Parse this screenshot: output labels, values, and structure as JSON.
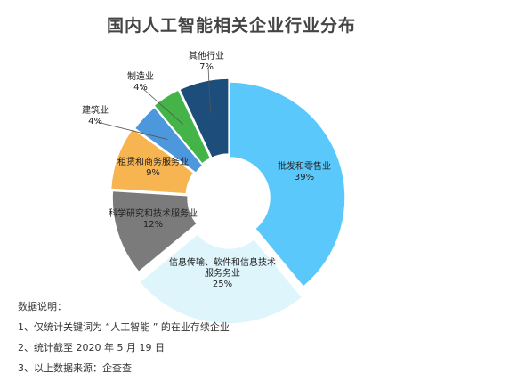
{
  "chart_data": {
    "type": "pie",
    "variant": "donut",
    "title": "国内人工智能相关企业行业分布",
    "slices": [
      {
        "name": "批发和零售业",
        "value": 39,
        "value_label": "39%",
        "color": "#5ac8fa"
      },
      {
        "name": "信息传输、软件和信息技术服务业",
        "name_lines": [
          "信息传输、软件和信息技术",
          "服务务业"
        ],
        "value": 25,
        "value_label": "25%",
        "color": "#dff5fc"
      },
      {
        "name": "科学研究和技术服务业",
        "value": 12,
        "value_label": "12%",
        "color": "#7b7b7b"
      },
      {
        "name": "租赁和商务服务业",
        "value": 9,
        "value_label": "9%",
        "color": "#f7b552"
      },
      {
        "name": "建筑业",
        "value": 4,
        "value_label": "4%",
        "color": "#4d98dd"
      },
      {
        "name": "制造业",
        "value": 4,
        "value_label": "4%",
        "color": "#44b348"
      },
      {
        "name": "其他行业",
        "value": 7,
        "value_label": "7%",
        "color": "#1d4e7b"
      }
    ]
  },
  "notes": {
    "heading": "数据说明：",
    "items": [
      "1、仅统计关键词为 “人工智能 ” 的在业存续企业",
      "2、统计截至 2020 年 5 月 19 日",
      "3、以上数据来源：企查查"
    ]
  }
}
